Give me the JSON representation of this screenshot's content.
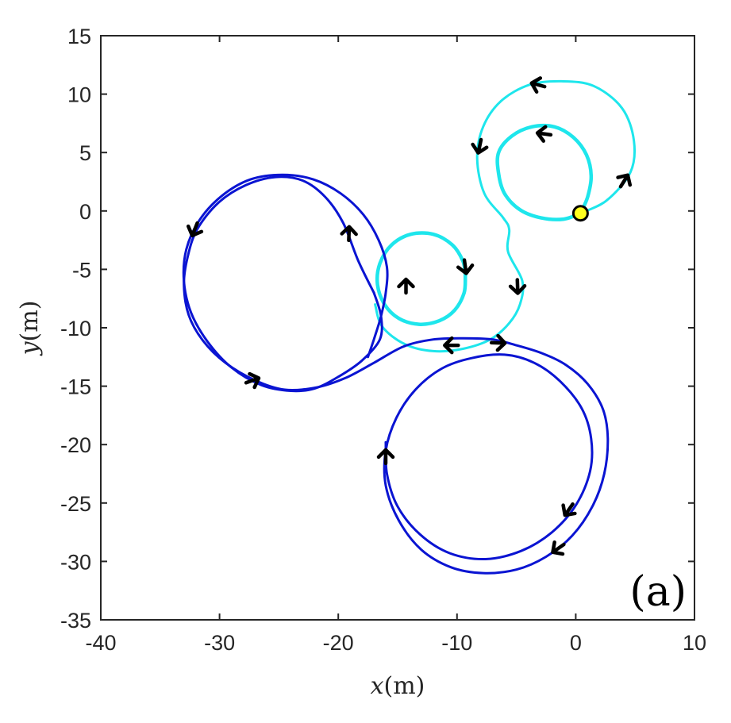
{
  "chart_data": {
    "type": "line",
    "title": "",
    "xlabel": {
      "var": "x",
      "unit": "(m)"
    },
    "ylabel": {
      "var": "y",
      "unit": "(m)"
    },
    "xlim": [
      -40,
      10
    ],
    "ylim": [
      -35,
      15
    ],
    "xticks": [
      -40,
      -30,
      -20,
      -10,
      0,
      10
    ],
    "yticks": [
      15,
      10,
      5,
      0,
      -5,
      -10,
      -15,
      -20,
      -25,
      -30,
      -35
    ],
    "xtick_labels": [
      "-40",
      "-30",
      "-20",
      "-10",
      "0",
      "10"
    ],
    "ytick_labels": [
      "15",
      "10",
      "5",
      "0",
      "-5",
      "-10",
      "-15",
      "-20",
      "-25",
      "-30",
      "-35"
    ],
    "grid": false,
    "panel_label": "(a)",
    "colors": {
      "blue": "#0a14d2",
      "cyan": "#1ee6ec",
      "arrow": "#000000",
      "marker_fill": "#ffff1e"
    },
    "series": [
      {
        "color": "cyan",
        "width": 3,
        "points": [
          [
            0.4,
            -0.2
          ],
          [
            2.6,
            0.9
          ],
          [
            4.6,
            3.3
          ],
          [
            4.9,
            6.0
          ],
          [
            3.9,
            8.8
          ],
          [
            1.5,
            10.7
          ],
          [
            -1.2,
            11.1
          ],
          [
            -3.9,
            10.8
          ],
          [
            -6.3,
            9.4
          ],
          [
            -7.8,
            7.2
          ],
          [
            -8.3,
            4.5
          ],
          [
            -7.7,
            1.5
          ],
          [
            -6.1,
            -0.6
          ],
          [
            -5.6,
            -1.6
          ],
          [
            -5.7,
            -3.5
          ],
          [
            -4.5,
            -6.0
          ],
          [
            -4.7,
            -8.0
          ],
          [
            -5.6,
            -9.6
          ],
          [
            -7.2,
            -11.0
          ],
          [
            -9.5,
            -11.8
          ],
          [
            -12.0,
            -12.0
          ],
          [
            -14.4,
            -11.4
          ],
          [
            -16.3,
            -9.9
          ],
          [
            -16.9,
            -8.0
          ]
        ]
      },
      {
        "color": "cyan",
        "width": 4.5,
        "points": [
          [
            -9.3,
            -5.5
          ],
          [
            -9.4,
            -7.0
          ],
          [
            -10.2,
            -8.5
          ],
          [
            -11.5,
            -9.4
          ],
          [
            -13.2,
            -9.7
          ],
          [
            -14.9,
            -9.2
          ],
          [
            -16.1,
            -8.0
          ],
          [
            -16.7,
            -6.3
          ],
          [
            -16.5,
            -4.5
          ],
          [
            -15.5,
            -2.9
          ],
          [
            -13.9,
            -2.0
          ],
          [
            -12.0,
            -2.0
          ],
          [
            -10.4,
            -2.9
          ],
          [
            -9.5,
            -4.3
          ],
          [
            -9.3,
            -5.5
          ]
        ]
      },
      {
        "color": "cyan",
        "width": 4.5,
        "points": [
          [
            0.4,
            -0.2
          ],
          [
            1.0,
            1.2
          ],
          [
            1.3,
            3.0
          ],
          [
            0.9,
            4.8
          ],
          [
            -0.2,
            6.3
          ],
          [
            -1.8,
            7.2
          ],
          [
            -3.7,
            7.2
          ],
          [
            -5.4,
            6.4
          ],
          [
            -6.5,
            5.0
          ],
          [
            -6.5,
            3.2
          ],
          [
            -6.0,
            1.5
          ],
          [
            -4.7,
            0.1
          ],
          [
            -2.9,
            -0.6
          ],
          [
            -1.0,
            -0.7
          ],
          [
            0.4,
            -0.2
          ]
        ]
      },
      {
        "color": "blue",
        "width": 3,
        "points": [
          [
            -17.0,
            -7.0
          ],
          [
            -18.3,
            -4.3
          ],
          [
            -19.6,
            -1.0
          ],
          [
            -21.1,
            1.2
          ],
          [
            -23.0,
            2.6
          ],
          [
            -25.3,
            2.9
          ],
          [
            -27.8,
            2.2
          ],
          [
            -30.1,
            0.7
          ],
          [
            -31.9,
            -1.6
          ],
          [
            -32.7,
            -4.0
          ],
          [
            -33.0,
            -6.3
          ],
          [
            -32.6,
            -8.9
          ],
          [
            -31.4,
            -11.1
          ],
          [
            -29.5,
            -13.0
          ],
          [
            -27.0,
            -14.5
          ],
          [
            -24.5,
            -15.3
          ],
          [
            -21.8,
            -15.1
          ],
          [
            -19.4,
            -14.3
          ],
          [
            -17.0,
            -13.0
          ],
          [
            -14.5,
            -11.6
          ],
          [
            -12.0,
            -11.0
          ],
          [
            -9.5,
            -10.9
          ],
          [
            -7.0,
            -11.0
          ],
          [
            -5.0,
            -11.5
          ],
          [
            -2.8,
            -12.2
          ],
          [
            -0.8,
            -13.2
          ],
          [
            1.0,
            -14.8
          ],
          [
            2.3,
            -17.0
          ],
          [
            2.7,
            -19.5
          ],
          [
            2.4,
            -22.5
          ],
          [
            1.4,
            -25.3
          ],
          [
            -0.3,
            -27.8
          ],
          [
            -2.5,
            -29.6
          ],
          [
            -5.0,
            -30.7
          ],
          [
            -7.8,
            -31.0
          ],
          [
            -10.5,
            -30.5
          ],
          [
            -13.0,
            -29.0
          ],
          [
            -14.9,
            -26.5
          ],
          [
            -16.0,
            -23.5
          ],
          [
            -16.0,
            -20.5
          ],
          [
            -15.1,
            -17.7
          ],
          [
            -13.5,
            -15.3
          ],
          [
            -11.3,
            -13.5
          ],
          [
            -8.8,
            -12.6
          ],
          [
            -6.0,
            -12.3
          ],
          [
            -3.5,
            -13.0
          ],
          [
            -1.3,
            -14.6
          ],
          [
            0.5,
            -16.9
          ],
          [
            1.3,
            -19.5
          ],
          [
            1.2,
            -22.3
          ],
          [
            0.0,
            -25.2
          ],
          [
            -2.0,
            -27.5
          ],
          [
            -4.6,
            -29.1
          ],
          [
            -7.6,
            -29.8
          ],
          [
            -10.6,
            -29.3
          ],
          [
            -13.1,
            -27.7
          ],
          [
            -15.0,
            -25.3
          ],
          [
            -15.9,
            -22.5
          ],
          [
            -16.0,
            -19.8
          ]
        ]
      },
      {
        "color": "blue",
        "width": 3,
        "points": [
          [
            -17.0,
            -7.0
          ],
          [
            -16.4,
            -9.0
          ],
          [
            -16.5,
            -11.0
          ],
          [
            -18.0,
            -12.8
          ],
          [
            -20.0,
            -14.2
          ],
          [
            -22.0,
            -15.2
          ],
          [
            -24.0,
            -15.4
          ],
          [
            -26.5,
            -14.9
          ],
          [
            -29.0,
            -13.4
          ],
          [
            -31.0,
            -11.2
          ],
          [
            -32.4,
            -8.7
          ],
          [
            -33.0,
            -6.0
          ],
          [
            -32.8,
            -3.3
          ],
          [
            -31.7,
            -0.8
          ],
          [
            -29.8,
            1.3
          ],
          [
            -27.4,
            2.7
          ],
          [
            -24.7,
            3.1
          ],
          [
            -22.1,
            2.7
          ],
          [
            -19.8,
            1.5
          ],
          [
            -17.9,
            -0.3
          ],
          [
            -16.6,
            -2.5
          ],
          [
            -15.9,
            -4.8
          ],
          [
            -16.0,
            -7.0
          ],
          [
            -16.4,
            -9.0
          ],
          [
            -17.0,
            -11.0
          ],
          [
            -17.5,
            -12.5
          ]
        ]
      }
    ],
    "arrows": [
      {
        "x": 4.1,
        "y": 2.6,
        "angle_deg": 58
      },
      {
        "x": -3.2,
        "y": 10.8,
        "angle_deg": 165
      },
      {
        "x": -8.1,
        "y": 5.5,
        "angle_deg": 258
      },
      {
        "x": -2.7,
        "y": 6.6,
        "angle_deg": 172
      },
      {
        "x": -4.9,
        "y": -6.5,
        "angle_deg": 272
      },
      {
        "x": -9.3,
        "y": -4.8,
        "angle_deg": 278
      },
      {
        "x": -14.3,
        "y": -6.4,
        "angle_deg": 90
      },
      {
        "x": -19.1,
        "y": -1.9,
        "angle_deg": 88
      },
      {
        "x": -32.1,
        "y": -1.6,
        "angle_deg": 248
      },
      {
        "x": -27.2,
        "y": -14.5,
        "angle_deg": 20
      },
      {
        "x": -10.5,
        "y": -11.5,
        "angle_deg": 180
      },
      {
        "x": -6.5,
        "y": -11.3,
        "angle_deg": 358
      },
      {
        "x": -16.0,
        "y": -21.0,
        "angle_deg": 90
      },
      {
        "x": -0.6,
        "y": -25.6,
        "angle_deg": 235
      },
      {
        "x": -1.5,
        "y": -28.9,
        "angle_deg": 215
      }
    ],
    "marker": {
      "x": 0.4,
      "y": -0.2
    }
  }
}
